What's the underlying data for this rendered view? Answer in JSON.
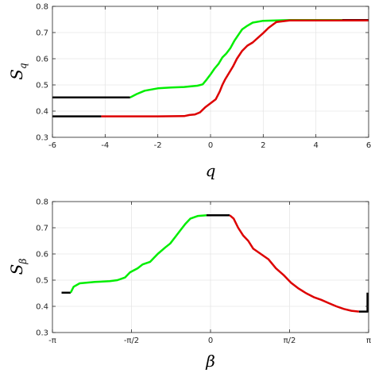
{
  "chart_data": [
    {
      "type": "line",
      "title": "",
      "xlabel": "q",
      "ylabel": "S",
      "ylabel_sub": "q",
      "xlim": [
        -6,
        6
      ],
      "ylim": [
        0.3,
        0.8
      ],
      "x_ticks": [
        -6,
        -4,
        -2,
        0,
        2,
        4,
        6
      ],
      "x_tick_labels": [
        "-6",
        "-4",
        "-2",
        "0",
        "2",
        "4",
        "6"
      ],
      "y_ticks": [
        0.3,
        0.4,
        0.5,
        0.6,
        0.7,
        0.8
      ],
      "y_tick_labels": [
        "0.3",
        "0.4",
        "0.5",
        "0.6",
        "0.7",
        "0.8"
      ],
      "grid": true,
      "series": [
        {
          "color": "#000000",
          "points": [
            [
              -6,
              0.452
            ],
            [
              -3.05,
              0.452
            ]
          ]
        },
        {
          "color": "#00ee00",
          "points": [
            [
              -3.05,
              0.452
            ],
            [
              -2.8,
              0.465
            ],
            [
              -2.5,
              0.478
            ],
            [
              -2.0,
              0.487
            ],
            [
              -1.5,
              0.49
            ],
            [
              -1.0,
              0.492
            ],
            [
              -0.5,
              0.497
            ],
            [
              -0.3,
              0.502
            ],
            [
              -0.15,
              0.52
            ],
            [
              0.0,
              0.54
            ],
            [
              0.15,
              0.562
            ],
            [
              0.3,
              0.58
            ],
            [
              0.45,
              0.605
            ],
            [
              0.6,
              0.62
            ],
            [
              0.75,
              0.64
            ],
            [
              0.9,
              0.668
            ],
            [
              1.05,
              0.69
            ],
            [
              1.2,
              0.712
            ],
            [
              1.4,
              0.726
            ],
            [
              1.6,
              0.738
            ],
            [
              2.0,
              0.745
            ],
            [
              3.0,
              0.748
            ],
            [
              5.0,
              0.748
            ]
          ]
        },
        {
          "color": "#000000",
          "points": [
            [
              5.0,
              0.748
            ],
            [
              6.0,
              0.748
            ]
          ]
        },
        {
          "color": "#000000",
          "points": [
            [
              -6,
              0.38
            ],
            [
              -4.15,
              0.38
            ]
          ]
        },
        {
          "color": "#dd0000",
          "points": [
            [
              -4.15,
              0.38
            ],
            [
              -2.0,
              0.38
            ],
            [
              -1.0,
              0.381
            ],
            [
              -0.8,
              0.385
            ],
            [
              -0.6,
              0.387
            ],
            [
              -0.4,
              0.395
            ],
            [
              -0.2,
              0.415
            ],
            [
              0.0,
              0.43
            ],
            [
              0.2,
              0.445
            ],
            [
              0.35,
              0.475
            ],
            [
              0.45,
              0.5
            ],
            [
              0.55,
              0.52
            ],
            [
              0.7,
              0.545
            ],
            [
              0.85,
              0.57
            ],
            [
              1.0,
              0.6
            ],
            [
              1.2,
              0.63
            ],
            [
              1.4,
              0.65
            ],
            [
              1.6,
              0.662
            ],
            [
              1.8,
              0.68
            ],
            [
              2.0,
              0.698
            ],
            [
              2.2,
              0.718
            ],
            [
              2.5,
              0.74
            ],
            [
              3.0,
              0.746
            ],
            [
              6.0,
              0.746
            ]
          ]
        }
      ]
    },
    {
      "type": "line",
      "title": "",
      "xlabel": "β",
      "ylabel": "S",
      "ylabel_sub": "β",
      "xlim": [
        -3.1416,
        3.1416
      ],
      "ylim": [
        0.3,
        0.8
      ],
      "x_ticks": [
        -3.1416,
        -1.5708,
        0,
        1.5708,
        3.1416
      ],
      "x_tick_labels": [
        "-π",
        "-π/2",
        "0",
        "π/2",
        "π"
      ],
      "y_ticks": [
        0.3,
        0.4,
        0.5,
        0.6,
        0.7,
        0.8
      ],
      "y_tick_labels": [
        "0.3",
        "0.4",
        "0.5",
        "0.6",
        "0.7",
        "0.8"
      ],
      "grid": true,
      "series": [
        {
          "color": "#000000",
          "points": [
            [
              -2.96,
              0.452
            ],
            [
              -2.78,
              0.452
            ]
          ]
        },
        {
          "color": "#00ee00",
          "points": [
            [
              -2.78,
              0.452
            ],
            [
              -2.72,
              0.475
            ],
            [
              -2.6,
              0.488
            ],
            [
              -2.3,
              0.493
            ],
            [
              -2.0,
              0.496
            ],
            [
              -1.85,
              0.5
            ],
            [
              -1.7,
              0.51
            ],
            [
              -1.6,
              0.53
            ],
            [
              -1.45,
              0.545
            ],
            [
              -1.35,
              0.56
            ],
            [
              -1.2,
              0.57
            ],
            [
              -1.05,
              0.6
            ],
            [
              -0.9,
              0.625
            ],
            [
              -0.8,
              0.64
            ],
            [
              -0.7,
              0.665
            ],
            [
              -0.6,
              0.69
            ],
            [
              -0.5,
              0.715
            ],
            [
              -0.4,
              0.735
            ],
            [
              -0.25,
              0.745
            ],
            [
              -0.08,
              0.748
            ]
          ]
        },
        {
          "color": "#000000",
          "points": [
            [
              -0.08,
              0.748
            ],
            [
              0.38,
              0.748
            ]
          ]
        },
        {
          "color": "#dd0000",
          "points": [
            [
              0.38,
              0.748
            ],
            [
              0.46,
              0.735
            ],
            [
              0.55,
              0.7
            ],
            [
              0.65,
              0.67
            ],
            [
              0.75,
              0.65
            ],
            [
              0.85,
              0.62
            ],
            [
              1.0,
              0.6
            ],
            [
              1.15,
              0.58
            ],
            [
              1.3,
              0.545
            ],
            [
              1.45,
              0.52
            ],
            [
              1.6,
              0.49
            ],
            [
              1.75,
              0.468
            ],
            [
              1.9,
              0.45
            ],
            [
              2.05,
              0.435
            ],
            [
              2.2,
              0.425
            ],
            [
              2.35,
              0.412
            ],
            [
              2.5,
              0.4
            ],
            [
              2.65,
              0.39
            ],
            [
              2.8,
              0.383
            ],
            [
              2.95,
              0.38
            ]
          ]
        },
        {
          "color": "#000000",
          "points": [
            [
              2.95,
              0.38
            ],
            [
              3.12,
              0.38
            ],
            [
              3.12,
              0.452
            ]
          ]
        }
      ]
    }
  ]
}
